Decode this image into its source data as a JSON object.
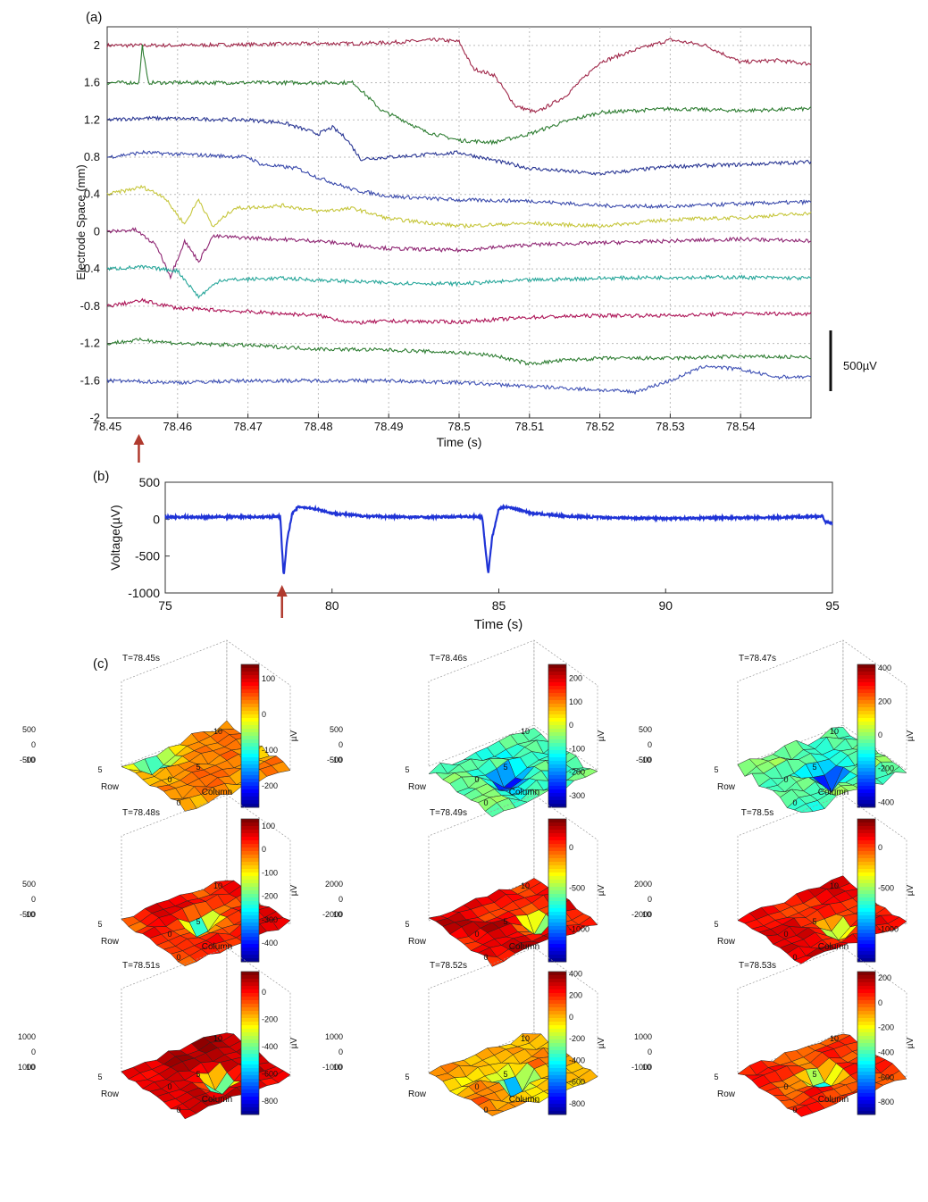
{
  "panel_labels": {
    "a": "(a)",
    "b": "(b)",
    "c": "(c)"
  },
  "scale_bar_label": "500µV",
  "colorbar_unit": "µV",
  "colors": {
    "arrow": "#b03a2e",
    "trace_b": "#1f33d6",
    "trace_a": [
      "#a0284a",
      "#2e7d32",
      "#283593",
      "#3949ab",
      "#c6c63c",
      "#8e2472",
      "#26a69a",
      "#ad1457",
      "#2e7d32",
      "#3f51b5"
    ]
  },
  "chart_data": [
    {
      "id": "a",
      "type": "line",
      "title": "",
      "xlabel": "Time (s)",
      "ylabel": "Electrode Space (mm)",
      "xlim": [
        78.45,
        78.55
      ],
      "ylim": [
        -2,
        2.2
      ],
      "x_ticks": [
        "78.45",
        "78.46",
        "78.47",
        "78.48",
        "78.49",
        "78.5",
        "78.51",
        "78.52",
        "78.53",
        "78.54"
      ],
      "y_ticks": [
        "2",
        "1.6",
        "1.2",
        "0.8",
        "0.4",
        "0",
        "-0.4",
        "-0.8",
        "-1.2",
        "-1.6",
        "-2"
      ],
      "grid": true,
      "arrow_at": 78.4545,
      "series": [
        {
          "baseline": 2.0,
          "points": [
            [
              78.45,
              2.0
            ],
            [
              78.46,
              2.0
            ],
            [
              78.47,
              2.01
            ],
            [
              78.48,
              2.02
            ],
            [
              78.485,
              2.02
            ],
            [
              78.49,
              2.03
            ],
            [
              78.497,
              2.06
            ],
            [
              78.5,
              2.04
            ],
            [
              78.502,
              1.75
            ],
            [
              78.505,
              1.68
            ],
            [
              78.508,
              1.35
            ],
            [
              78.511,
              1.28
            ],
            [
              78.515,
              1.45
            ],
            [
              78.52,
              1.82
            ],
            [
              78.525,
              1.95
            ],
            [
              78.53,
              2.06
            ],
            [
              78.535,
              2.0
            ],
            [
              78.54,
              1.82
            ],
            [
              78.545,
              1.84
            ],
            [
              78.55,
              1.8
            ]
          ]
        },
        {
          "baseline": 1.6,
          "points": [
            [
              78.45,
              1.6
            ],
            [
              78.4545,
              1.6
            ],
            [
              78.455,
              2.0
            ],
            [
              78.4558,
              1.6
            ],
            [
              78.47,
              1.6
            ],
            [
              78.48,
              1.6
            ],
            [
              78.485,
              1.6
            ],
            [
              78.489,
              1.3
            ],
            [
              78.492,
              1.2
            ],
            [
              78.495,
              1.08
            ],
            [
              78.5,
              0.98
            ],
            [
              78.505,
              0.96
            ],
            [
              78.51,
              1.05
            ],
            [
              78.515,
              1.18
            ],
            [
              78.52,
              1.28
            ],
            [
              78.53,
              1.32
            ],
            [
              78.54,
              1.3
            ],
            [
              78.55,
              1.32
            ]
          ]
        },
        {
          "baseline": 1.2,
          "points": [
            [
              78.45,
              1.2
            ],
            [
              78.455,
              1.22
            ],
            [
              78.47,
              1.2
            ],
            [
              78.475,
              1.17
            ],
            [
              78.48,
              1.05
            ],
            [
              78.482,
              1.12
            ],
            [
              78.484,
              1.0
            ],
            [
              78.486,
              0.78
            ],
            [
              78.49,
              0.8
            ],
            [
              78.5,
              0.85
            ],
            [
              78.51,
              0.68
            ],
            [
              78.52,
              0.62
            ],
            [
              78.53,
              0.7
            ],
            [
              78.54,
              0.72
            ],
            [
              78.55,
              0.75
            ]
          ]
        },
        {
          "baseline": 0.8,
          "points": [
            [
              78.45,
              0.8
            ],
            [
              78.455,
              0.85
            ],
            [
              78.47,
              0.8
            ],
            [
              78.472,
              0.72
            ],
            [
              78.477,
              0.68
            ],
            [
              78.48,
              0.58
            ],
            [
              78.485,
              0.45
            ],
            [
              78.49,
              0.38
            ],
            [
              78.5,
              0.34
            ],
            [
              78.51,
              0.33
            ],
            [
              78.52,
              0.28
            ],
            [
              78.53,
              0.27
            ],
            [
              78.54,
              0.3
            ],
            [
              78.55,
              0.32
            ]
          ]
        },
        {
          "baseline": 0.4,
          "points": [
            [
              78.45,
              0.4
            ],
            [
              78.455,
              0.48
            ],
            [
              78.458,
              0.38
            ],
            [
              78.461,
              0.08
            ],
            [
              78.463,
              0.35
            ],
            [
              78.465,
              0.05
            ],
            [
              78.468,
              0.25
            ],
            [
              78.475,
              0.28
            ],
            [
              78.48,
              0.22
            ],
            [
              78.485,
              0.25
            ],
            [
              78.49,
              0.14
            ],
            [
              78.5,
              0.06
            ],
            [
              78.51,
              0.09
            ],
            [
              78.52,
              0.06
            ],
            [
              78.53,
              0.13
            ],
            [
              78.54,
              0.15
            ],
            [
              78.55,
              0.2
            ]
          ]
        },
        {
          "baseline": 0.0,
          "points": [
            [
              78.45,
              0.0
            ],
            [
              78.454,
              0.02
            ],
            [
              78.457,
              -0.15
            ],
            [
              78.459,
              -0.48
            ],
            [
              78.461,
              -0.1
            ],
            [
              78.463,
              -0.32
            ],
            [
              78.465,
              -0.05
            ],
            [
              78.48,
              -0.1
            ],
            [
              78.49,
              -0.18
            ],
            [
              78.5,
              -0.2
            ],
            [
              78.51,
              -0.14
            ],
            [
              78.52,
              -0.12
            ],
            [
              78.53,
              -0.1
            ],
            [
              78.54,
              -0.08
            ],
            [
              78.55,
              -0.1
            ]
          ]
        },
        {
          "baseline": -0.4,
          "points": [
            [
              78.45,
              -0.4
            ],
            [
              78.455,
              -0.38
            ],
            [
              78.46,
              -0.42
            ],
            [
              78.463,
              -0.7
            ],
            [
              78.466,
              -0.52
            ],
            [
              78.475,
              -0.5
            ],
            [
              78.48,
              -0.52
            ],
            [
              78.49,
              -0.55
            ],
            [
              78.5,
              -0.56
            ],
            [
              78.51,
              -0.52
            ],
            [
              78.52,
              -0.5
            ],
            [
              78.53,
              -0.49
            ],
            [
              78.54,
              -0.49
            ],
            [
              78.55,
              -0.5
            ]
          ]
        },
        {
          "baseline": -0.8,
          "points": [
            [
              78.45,
              -0.8
            ],
            [
              78.455,
              -0.74
            ],
            [
              78.46,
              -0.82
            ],
            [
              78.47,
              -0.86
            ],
            [
              78.48,
              -0.9
            ],
            [
              78.485,
              -0.98
            ],
            [
              78.49,
              -0.96
            ],
            [
              78.5,
              -0.97
            ],
            [
              78.51,
              -0.92
            ],
            [
              78.52,
              -0.9
            ],
            [
              78.53,
              -0.9
            ],
            [
              78.54,
              -0.88
            ],
            [
              78.55,
              -0.88
            ]
          ]
        },
        {
          "baseline": -1.2,
          "points": [
            [
              78.45,
              -1.2
            ],
            [
              78.455,
              -1.16
            ],
            [
              78.46,
              -1.2
            ],
            [
              78.47,
              -1.22
            ],
            [
              78.48,
              -1.26
            ],
            [
              78.49,
              -1.27
            ],
            [
              78.5,
              -1.3
            ],
            [
              78.505,
              -1.33
            ],
            [
              78.51,
              -1.42
            ],
            [
              78.515,
              -1.38
            ],
            [
              78.52,
              -1.36
            ],
            [
              78.53,
              -1.36
            ],
            [
              78.54,
              -1.34
            ],
            [
              78.55,
              -1.35
            ]
          ]
        },
        {
          "baseline": -1.6,
          "points": [
            [
              78.45,
              -1.6
            ],
            [
              78.46,
              -1.62
            ],
            [
              78.47,
              -1.6
            ],
            [
              78.48,
              -1.6
            ],
            [
              78.49,
              -1.6
            ],
            [
              78.5,
              -1.62
            ],
            [
              78.51,
              -1.66
            ],
            [
              78.52,
              -1.7
            ],
            [
              78.525,
              -1.72
            ],
            [
              78.53,
              -1.6
            ],
            [
              78.535,
              -1.44
            ],
            [
              78.54,
              -1.48
            ],
            [
              78.545,
              -1.56
            ],
            [
              78.55,
              -1.56
            ]
          ]
        }
      ]
    },
    {
      "id": "b",
      "type": "line",
      "title": "",
      "xlabel": "Time (s)",
      "ylabel": "Voltage(µV)",
      "xlim": [
        75,
        95
      ],
      "ylim": [
        -1000,
        500
      ],
      "x_ticks": [
        "75",
        "80",
        "85",
        "90",
        "95"
      ],
      "y_ticks": [
        "500",
        "0",
        "-500",
        "-1000"
      ],
      "grid": false,
      "arrow_at": 78.5,
      "points": [
        [
          75,
          30
        ],
        [
          76,
          28
        ],
        [
          77,
          32
        ],
        [
          78,
          30
        ],
        [
          78.45,
          40
        ],
        [
          78.5,
          -400
        ],
        [
          78.55,
          -780
        ],
        [
          78.65,
          -300
        ],
        [
          78.8,
          70
        ],
        [
          79.0,
          170
        ],
        [
          79.5,
          140
        ],
        [
          80,
          80
        ],
        [
          81,
          40
        ],
        [
          82,
          30
        ],
        [
          83,
          28
        ],
        [
          84,
          35
        ],
        [
          84.5,
          32
        ],
        [
          84.6,
          -400
        ],
        [
          84.68,
          -740
        ],
        [
          84.8,
          -250
        ],
        [
          85.0,
          140
        ],
        [
          85.2,
          170
        ],
        [
          85.6,
          130
        ],
        [
          86,
          80
        ],
        [
          87,
          40
        ],
        [
          88,
          25
        ],
        [
          89,
          15
        ],
        [
          90,
          10
        ],
        [
          91,
          15
        ],
        [
          92,
          20
        ],
        [
          93,
          20
        ],
        [
          94,
          30
        ],
        [
          94.7,
          40
        ],
        [
          94.8,
          -40
        ],
        [
          95,
          -60
        ]
      ]
    },
    {
      "id": "c",
      "type": "heatmap",
      "row_label": "Row",
      "column_label": "Column",
      "row_ticks": [
        "10",
        "5",
        "0"
      ],
      "column_ticks": [
        "0",
        "5",
        "10"
      ],
      "subplots": [
        {
          "title": "T=78.45s",
          "z_ticks": [
            "500",
            "0",
            "-500"
          ],
          "cbar_ticks": [
            "100",
            "0",
            "-100",
            "-200"
          ],
          "cbar_range": [
            -260,
            140
          ],
          "trough": [
            0.25,
            0.1
          ],
          "depth": -200,
          "bias": 25
        },
        {
          "title": "T=78.46s",
          "z_ticks": [
            "500",
            "0",
            "-500"
          ],
          "cbar_ticks": [
            "200",
            "100",
            "0",
            "-100",
            "-200",
            "-300"
          ],
          "cbar_range": [
            -350,
            260
          ],
          "trough": [
            0.45,
            0.5
          ],
          "depth": -340,
          "bias": -80
        },
        {
          "title": "T=78.47s",
          "z_ticks": [
            "500",
            "0",
            "-500"
          ],
          "cbar_ticks": [
            "400",
            "200",
            "0",
            "-200",
            "-400"
          ],
          "cbar_range": [
            -430,
            420
          ],
          "trough": [
            0.55,
            0.55
          ],
          "depth": -420,
          "bias": -40
        },
        {
          "title": "T=78.48s",
          "z_ticks": [
            "500",
            "0",
            "-500"
          ],
          "cbar_ticks": [
            "100",
            "0",
            "-100",
            "-200",
            "-300",
            "-400"
          ],
          "cbar_range": [
            -480,
            130
          ],
          "trough": [
            0.5,
            0.45
          ],
          "depth": -450,
          "bias": 40
        },
        {
          "title": "T=78.49s",
          "z_ticks": [
            "2000",
            "0",
            "-2000"
          ],
          "cbar_ticks": [
            "0",
            "-500",
            "-1000"
          ],
          "cbar_range": [
            -1400,
            350
          ],
          "trough": [
            0.65,
            0.6
          ],
          "depth": -1350,
          "bias": 150
        },
        {
          "title": "T=78.5s",
          "z_ticks": [
            "2000",
            "0",
            "-2000"
          ],
          "cbar_ticks": [
            "0",
            "-500",
            "-1000"
          ],
          "cbar_range": [
            -1400,
            350
          ],
          "trough": [
            0.55,
            0.65
          ],
          "depth": -1200,
          "bias": 150
        },
        {
          "title": "T=78.51s",
          "z_ticks": [
            "1000",
            "0",
            "1000"
          ],
          "cbar_ticks": [
            "0",
            "-200",
            "-400",
            "-600",
            "-800"
          ],
          "cbar_range": [
            -900,
            150
          ],
          "trough": [
            0.55,
            0.6
          ],
          "depth": -850,
          "bias": 80
        },
        {
          "title": "T=78.52s",
          "z_ticks": [
            "1000",
            "0",
            "-1000"
          ],
          "cbar_ticks": [
            "400",
            "200",
            "0",
            "-200",
            "-400",
            "-600",
            "-800"
          ],
          "cbar_range": [
            -900,
            420
          ],
          "trough": [
            0.5,
            0.55
          ],
          "depth": -850,
          "bias": 30
        },
        {
          "title": "T=78.53s",
          "z_ticks": [
            "1000",
            "0",
            "-1000"
          ],
          "cbar_ticks": [
            "200",
            "0",
            "-200",
            "-400",
            "-600",
            "-800"
          ],
          "cbar_range": [
            -900,
            250
          ],
          "trough": [
            0.5,
            0.5
          ],
          "depth": -850,
          "bias": 60
        }
      ]
    }
  ]
}
